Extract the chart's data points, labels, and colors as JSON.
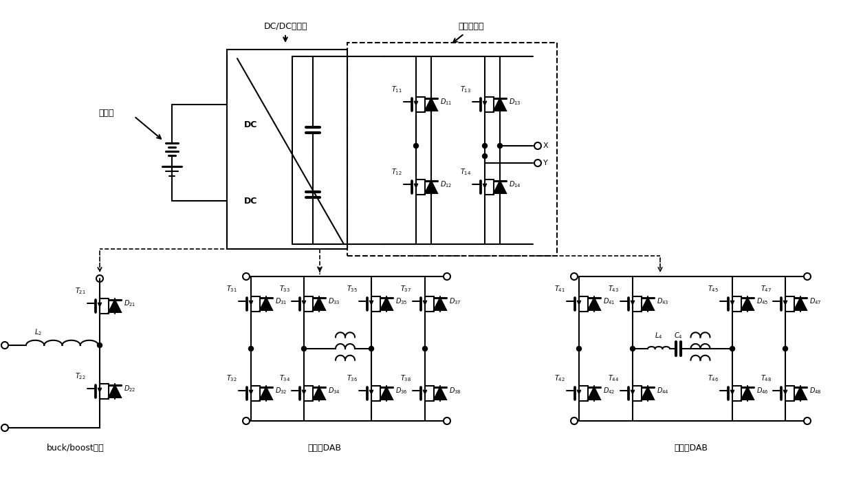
{
  "bg_color": "#ffffff",
  "lw": 1.5,
  "fs_small": 7,
  "fs_mid": 9,
  "labels": {
    "dc_dc": "DC/DC变换器",
    "full_bridge": "全桥子模块",
    "battery": "电池组",
    "dc_top": "DC",
    "dc_bot": "DC",
    "x_label": "X",
    "y_label": "Y",
    "buck_boost": "buck/boost电路",
    "phase_shift": "移相式DAB",
    "resonant": "谐振式DAB"
  }
}
